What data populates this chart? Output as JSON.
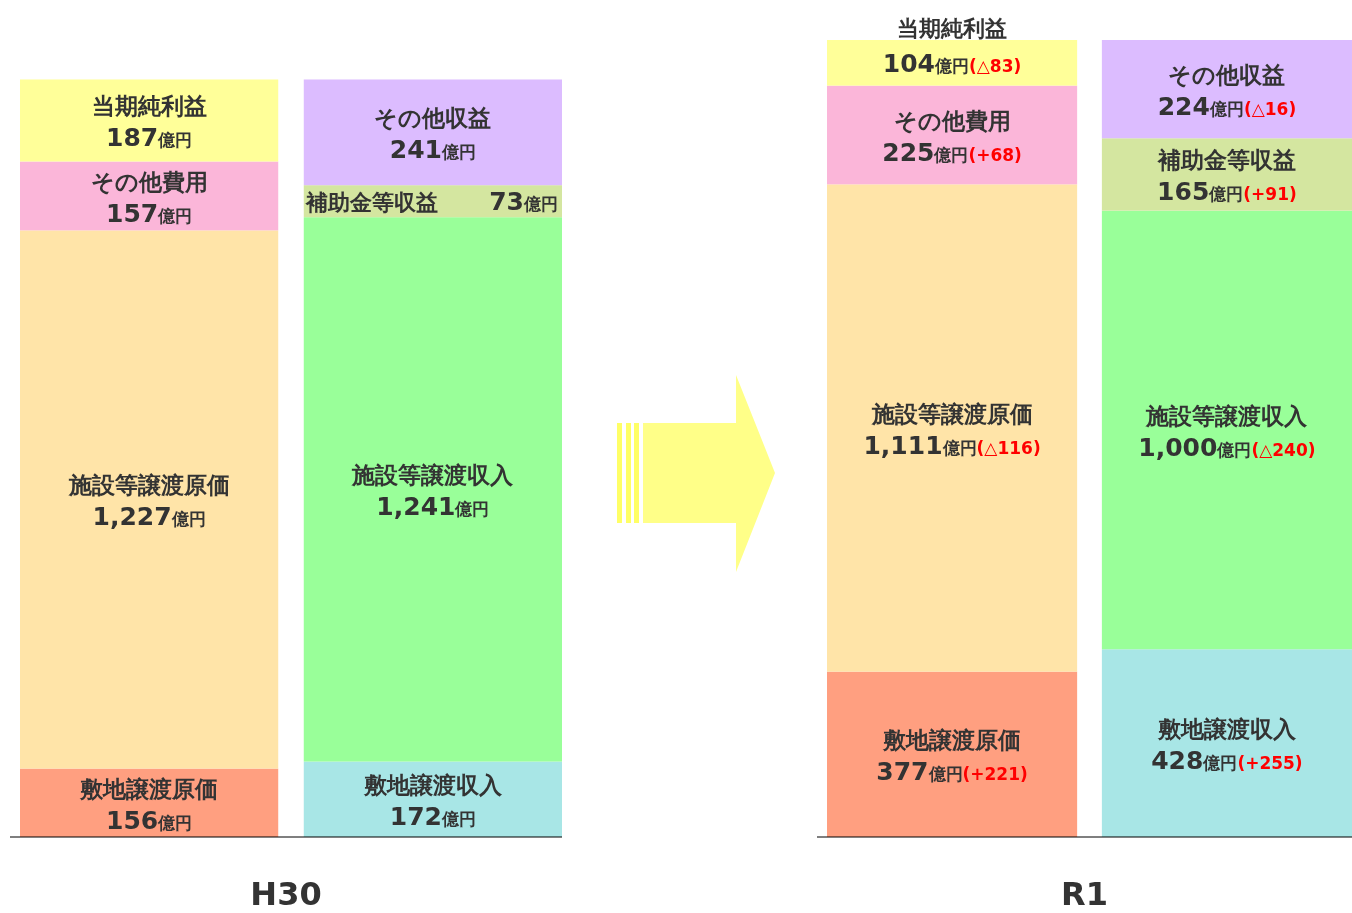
{
  "chart_data": [
    {
      "type": "bar",
      "stacked": true,
      "xlabel": "H30",
      "categories": [
        null,
        null
      ],
      "series": [
        {
          "name": "敷地譲渡原価",
          "color": "#ff9f80",
          "values": [
            156,
            null
          ],
          "value_labels": [
            "156億円",
            null
          ]
        },
        {
          "name": "施設等譲渡原価",
          "color": "#ffe4a8",
          "values": [
            1227,
            null
          ],
          "value_labels": [
            "1,227億円",
            null
          ]
        },
        {
          "name": "その他費用",
          "color": "#fbb6d9",
          "values": [
            157,
            null
          ],
          "value_labels": [
            "157億円",
            null
          ]
        },
        {
          "name": "当期純利益",
          "color": "#ffff99",
          "values": [
            187,
            null
          ],
          "value_labels": [
            "187億円",
            null
          ]
        },
        {
          "name": "敷地譲渡収入",
          "color": "#a8e6e6",
          "values": [
            null,
            172
          ],
          "value_labels": [
            null,
            "172億円"
          ]
        },
        {
          "name": "施設等譲渡収入",
          "color": "#99ff99",
          "values": [
            null,
            1241
          ],
          "value_labels": [
            null,
            "1,241億円"
          ]
        },
        {
          "name": "補助金等収益",
          "color": "#d4e6a0",
          "values": [
            null,
            73
          ],
          "value_labels": [
            null,
            "73億円"
          ]
        },
        {
          "name": "その他収益",
          "color": "#dcbcff",
          "values": [
            null,
            241
          ],
          "value_labels": [
            null,
            "241億円"
          ]
        }
      ]
    },
    {
      "type": "bar",
      "stacked": true,
      "xlabel": "R1",
      "categories": [
        null,
        null
      ],
      "series": [
        {
          "name": "敷地譲渡原価",
          "color": "#ff9f80",
          "values": [
            377,
            null
          ],
          "value_labels": [
            "377億円(+221)",
            null
          ]
        },
        {
          "name": "施設等譲渡原価",
          "color": "#ffe4a8",
          "values": [
            1111,
            null
          ],
          "value_labels": [
            "1,111億円(△116)",
            null
          ]
        },
        {
          "name": "その他費用",
          "color": "#fbb6d9",
          "values": [
            225,
            null
          ],
          "value_labels": [
            "225億円(+68)",
            null
          ]
        },
        {
          "name": "当期純利益",
          "color": "#ffff99",
          "values": [
            104,
            null
          ],
          "value_labels": [
            "104億円(△83)",
            null
          ]
        },
        {
          "name": "敷地譲渡収入",
          "color": "#a8e6e6",
          "values": [
            null,
            428
          ],
          "value_labels": [
            null,
            "428億円(+255)"
          ]
        },
        {
          "name": "施設等譲渡収入",
          "color": "#99ff99",
          "values": [
            null,
            1000
          ],
          "value_labels": [
            null,
            "1,000億円(△240)"
          ]
        },
        {
          "name": "補助金等収益",
          "color": "#d4e6a0",
          "values": [
            null,
            165
          ],
          "value_labels": [
            null,
            "165億円(+91)"
          ]
        },
        {
          "name": "その他収益",
          "color": "#dcbcff",
          "values": [
            null,
            224
          ],
          "value_labels": [
            null,
            "224億円(△16)"
          ]
        }
      ]
    }
  ]
}
